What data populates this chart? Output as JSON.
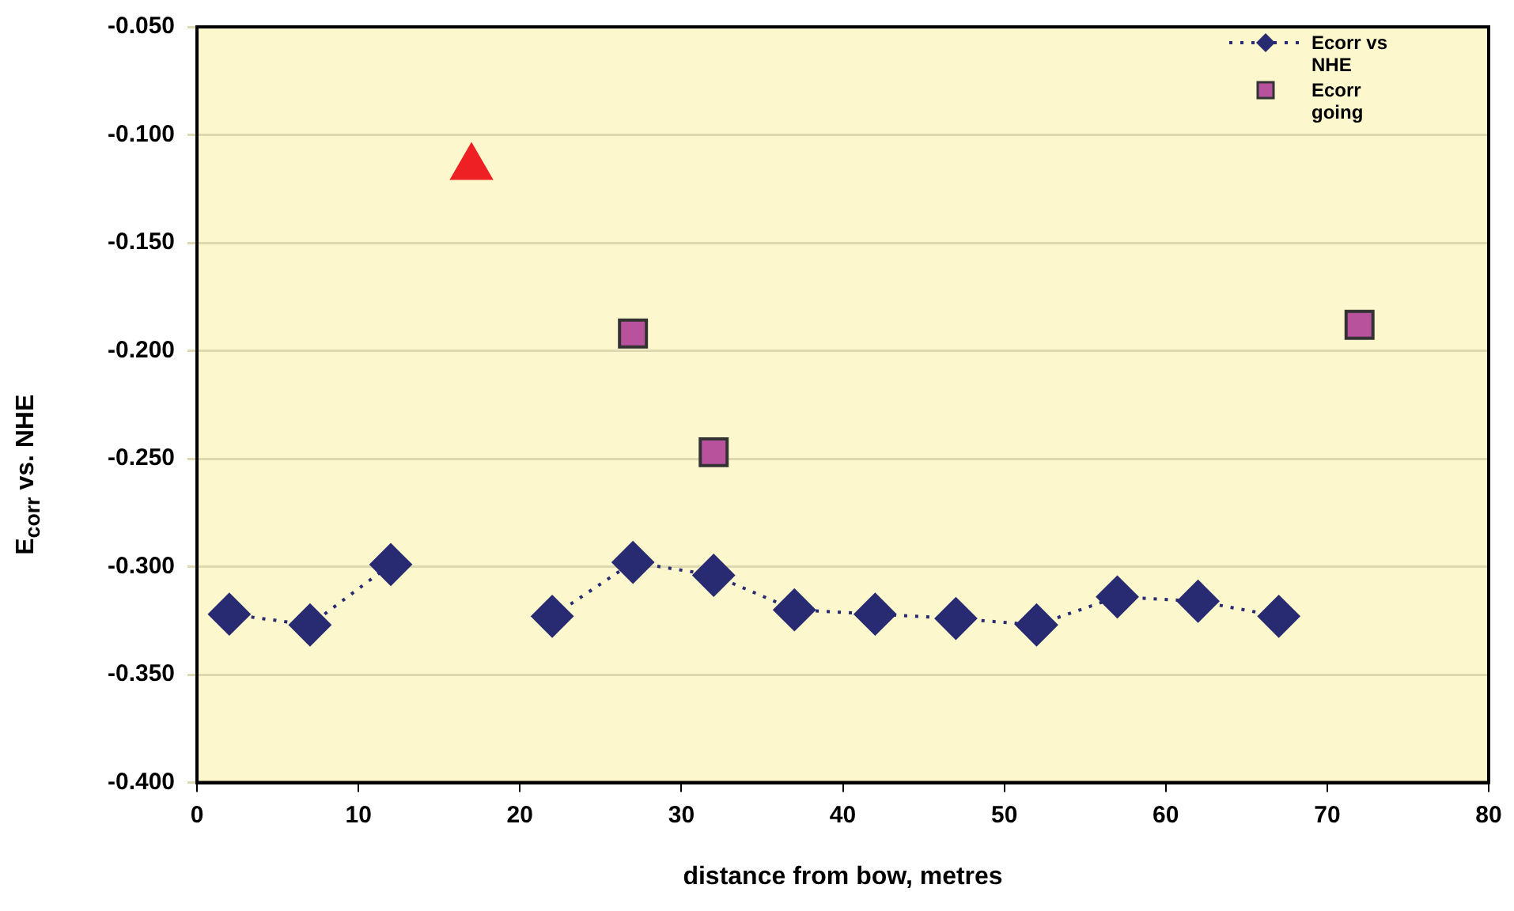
{
  "chart_data": {
    "type": "scatter",
    "xlabel": "distance from bow, metres",
    "ylabel": "E$_{corr}$ vs. NHE",
    "xlim": [
      0,
      80
    ],
    "xticks": [
      0,
      10,
      20,
      30,
      40,
      50,
      60,
      70,
      80
    ],
    "ylim": [
      -0.4,
      -0.05
    ],
    "yticks": [
      {
        "value": -0.4,
        "label": "-0.400"
      },
      {
        "value": -0.35,
        "label": "-0.350"
      },
      {
        "value": -0.3,
        "label": "-0.300"
      },
      {
        "value": -0.25,
        "label": "-0.250"
      },
      {
        "value": -0.2,
        "label": "-0.200"
      },
      {
        "value": -0.15,
        "label": "-0.150"
      },
      {
        "value": -0.1,
        "label": "-0.100"
      },
      {
        "value": -0.05,
        "label": "-0.050"
      }
    ],
    "grid": "y",
    "legend": "top right",
    "series": [
      {
        "name": "Ecorr vs NHE",
        "type": "line",
        "marker": "diamond",
        "line_style": "dotted",
        "color": "#282a72",
        "x": [
          2,
          7,
          12,
          17,
          22,
          27,
          32,
          37,
          42,
          47,
          52,
          57,
          62,
          67
        ],
        "values": [
          -0.322,
          -0.327,
          -0.299,
          null,
          -0.323,
          -0.298,
          -0.304,
          -0.32,
          -0.322,
          -0.324,
          -0.327,
          -0.314,
          -0.316,
          -0.323
        ]
      },
      {
        "name": "Ecorr going",
        "marker": "square",
        "color": "#b8529c",
        "x": [
          27,
          32,
          72
        ],
        "values": [
          -0.192,
          -0.247,
          -0.188
        ]
      },
      {
        "marker": "triangle",
        "color": "#ee2024",
        "x": [
          17
        ],
        "values": [
          -0.115
        ]
      }
    ]
  }
}
